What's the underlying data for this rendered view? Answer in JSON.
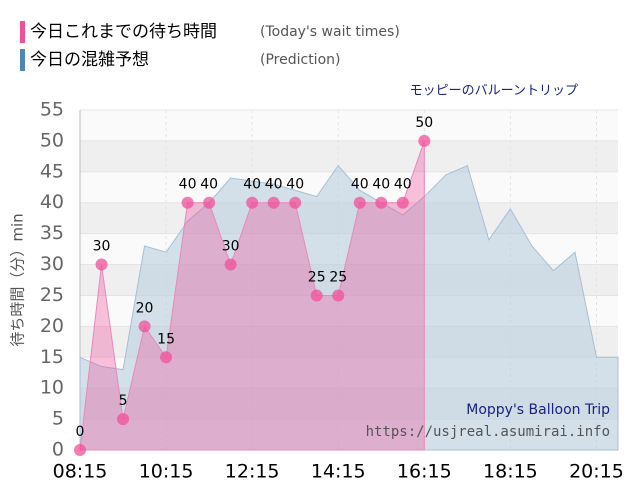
{
  "chart_data": {
    "type": "area",
    "title": "モッピーのバルーントリップ",
    "y_label": "待ち時間（分）min",
    "watermark": [
      "Moppy's Balloon Trip",
      "https://usjreal.asumirai.info"
    ],
    "series": [
      {
        "name": "今日これまでの待ち時間",
        "note": "(Today's wait times)",
        "color": "#f0509a",
        "x": [
          8.25,
          8.75,
          9.25,
          9.75,
          10.25,
          10.75,
          11.25,
          11.75,
          12.25,
          12.75,
          13.25,
          13.75,
          14.25,
          14.75,
          15.25,
          15.75,
          16.25
        ],
        "values": [
          0,
          30,
          5,
          20,
          15,
          40,
          40,
          30,
          40,
          40,
          40,
          25,
          25,
          40,
          40,
          40,
          50
        ]
      },
      {
        "name": "今日の混雑予想",
        "note": "(Prediction)",
        "color": "#4f86b5",
        "x": [
          8.25,
          8.75,
          9.25,
          9.75,
          10.25,
          10.75,
          11.25,
          11.75,
          12.25,
          12.75,
          13.25,
          13.75,
          14.25,
          14.75,
          15.25,
          15.75,
          16.25,
          16.75,
          17.25,
          17.75,
          18.25,
          18.75,
          19.25,
          19.75,
          20.25,
          20.75
        ],
        "values": [
          15,
          13.5,
          13,
          33,
          32,
          37,
          40,
          44,
          43.5,
          43,
          42,
          41,
          46,
          42,
          40,
          38,
          41,
          44.5,
          46,
          34,
          39,
          33,
          29,
          32,
          15,
          15
        ]
      }
    ],
    "xlim": [
      8.25,
      20.75
    ],
    "xticks": [
      {
        "value": 8.25,
        "label": "08:15"
      },
      {
        "value": 10.25,
        "label": "10:15"
      },
      {
        "value": 12.25,
        "label": "12:15"
      },
      {
        "value": 14.25,
        "label": "14:15"
      },
      {
        "value": 16.25,
        "label": "16:15"
      },
      {
        "value": 18.25,
        "label": "18:15"
      },
      {
        "value": 20.25,
        "label": "20:15"
      }
    ],
    "ylim": [
      0,
      55
    ],
    "yticks": [
      0,
      5,
      10,
      15,
      20,
      25,
      30,
      35,
      40,
      45,
      50,
      55
    ],
    "grid": true
  }
}
